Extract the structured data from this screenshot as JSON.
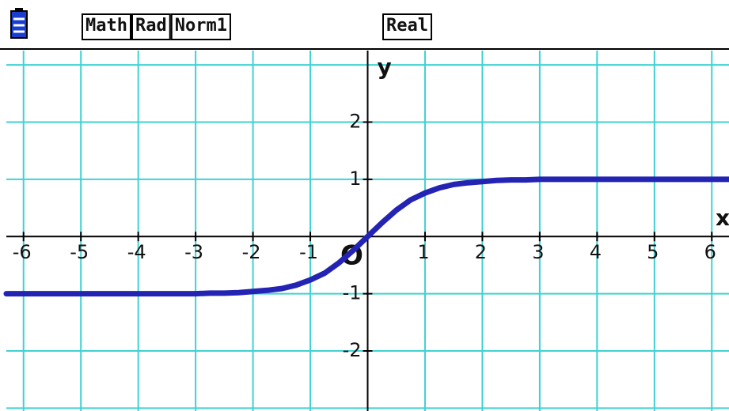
{
  "status_bar": {
    "modes": [
      "Math",
      "Rad",
      "Norm1"
    ],
    "number_mode": "Real"
  },
  "chart_data": {
    "type": "line",
    "x_label": "x",
    "y_label": "y",
    "origin_label": "O",
    "x": [
      -6.3,
      -5,
      -4,
      -3,
      -2.75,
      -2.5,
      -2.25,
      -2,
      -1.75,
      -1.5,
      -1.25,
      -1,
      -0.75,
      -0.5,
      -0.25,
      0,
      0.25,
      0.5,
      0.75,
      1,
      1.25,
      1.5,
      1.75,
      2,
      2.25,
      2.5,
      2.75,
      3,
      4,
      5,
      6.3
    ],
    "values": [
      -1,
      -1,
      -1,
      -1,
      -0.99,
      -0.99,
      -0.98,
      -0.96,
      -0.94,
      -0.91,
      -0.85,
      -0.76,
      -0.64,
      -0.46,
      -0.24,
      0,
      0.24,
      0.46,
      0.64,
      0.76,
      0.85,
      0.91,
      0.94,
      0.96,
      0.98,
      0.99,
      0.99,
      1,
      1,
      1,
      1
    ],
    "color": "#2424b4",
    "xlim": [
      -6.3,
      6.3
    ],
    "ylim": [
      -3.05,
      3.25
    ],
    "xticks": [
      -6,
      -5,
      -4,
      -3,
      -2,
      -1,
      1,
      2,
      3,
      4,
      5,
      6
    ],
    "yticks": [
      -2,
      -1,
      1,
      2
    ],
    "grid": true,
    "grid_color": "#3fd2d2"
  }
}
